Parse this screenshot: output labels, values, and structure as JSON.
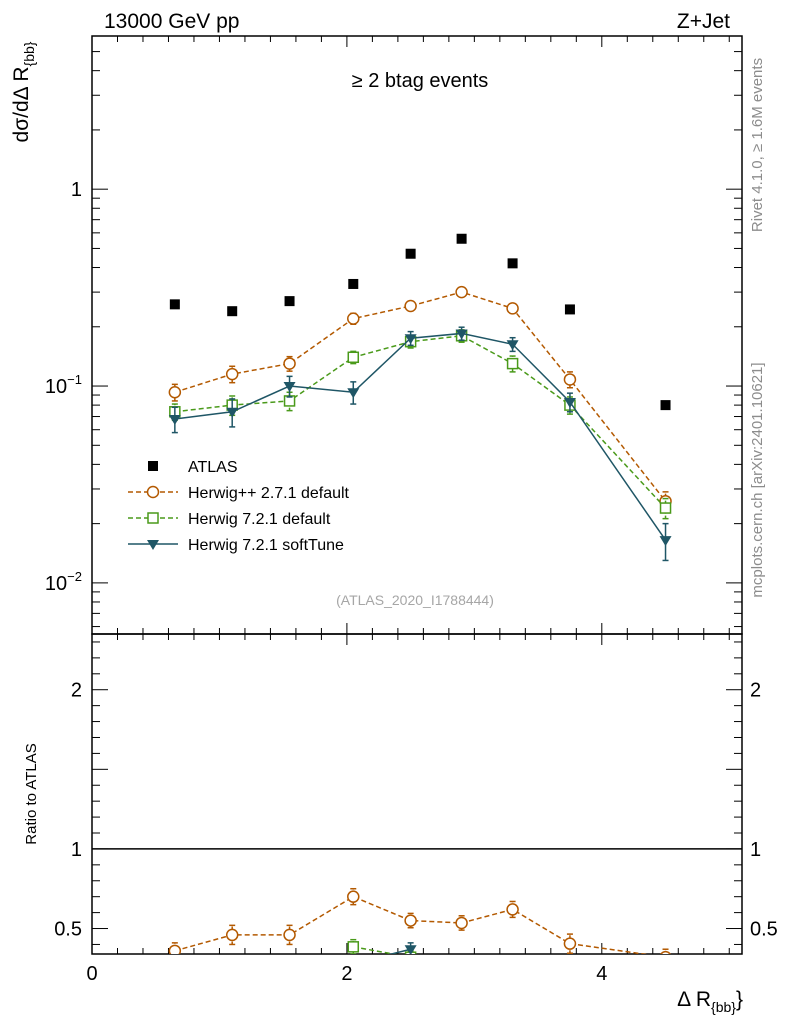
{
  "header": {
    "left": "13000 GeV pp",
    "right": "Z+Jet"
  },
  "side_labels": {
    "rivet": "Rivet 4.1.0, ≥ 1.6M events",
    "mcplots": "mcplots.cern.ch [arXiv:2401.10621]"
  },
  "chart_data": [
    {
      "type": "scatter",
      "panel": "main",
      "title": "≥ 2 btag events",
      "ylabel": "dσ/dΔ R{bb}",
      "yscale": "log",
      "ylim": [
        0.0055,
        6
      ],
      "xlim": [
        0,
        5.1
      ],
      "watermark": "(ATLAS_2020_I1788444)",
      "y_ticks": [
        {
          "value": 0.01,
          "label": "10",
          "exp": "−2"
        },
        {
          "value": 0.1,
          "label": "10",
          "exp": "−1"
        },
        {
          "value": 1,
          "label": "1",
          "exp": ""
        }
      ],
      "legend_position": "lower-left",
      "series": [
        {
          "name": "ATLAS",
          "color": "#000000",
          "marker": "square-filled",
          "line": "none",
          "x": [
            0.65,
            1.1,
            1.55,
            2.05,
            2.5,
            2.9,
            3.3,
            3.75,
            4.5
          ],
          "y": [
            0.26,
            0.24,
            0.27,
            0.33,
            0.47,
            0.56,
            0.42,
            0.245,
            0.08
          ],
          "err": [
            0,
            0,
            0,
            0,
            0,
            0,
            0,
            0,
            0
          ]
        },
        {
          "name": "Herwig++ 2.7.1 default",
          "color": "#b35900",
          "marker": "circle-open",
          "line": "dashed",
          "x": [
            0.65,
            1.1,
            1.55,
            2.05,
            2.5,
            2.9,
            3.3,
            3.75,
            4.5
          ],
          "y": [
            0.093,
            0.115,
            0.13,
            0.22,
            0.255,
            0.3,
            0.248,
            0.108,
            0.026
          ],
          "err": [
            0.009,
            0.011,
            0.011,
            0.014,
            0.014,
            0.015,
            0.014,
            0.01,
            0.003
          ]
        },
        {
          "name": "Herwig 7.2.1 default",
          "color": "#4a9a1a",
          "marker": "square-open",
          "line": "dashed",
          "x": [
            0.65,
            1.1,
            1.55,
            2.05,
            2.5,
            2.9,
            3.3,
            3.75,
            4.5
          ],
          "y": [
            0.074,
            0.08,
            0.084,
            0.14,
            0.168,
            0.18,
            0.13,
            0.08,
            0.024
          ],
          "err": [
            0.007,
            0.009,
            0.009,
            0.01,
            0.012,
            0.013,
            0.012,
            0.008,
            0.0028
          ]
        },
        {
          "name": "Herwig 7.2.1 softTune",
          "color": "#1f5666",
          "marker": "triangle-down-filled",
          "line": "solid",
          "x": [
            0.65,
            1.1,
            1.55,
            2.05,
            2.5,
            2.9,
            3.3,
            3.75,
            4.5
          ],
          "y": [
            0.068,
            0.074,
            0.1,
            0.093,
            0.175,
            0.185,
            0.163,
            0.083,
            0.0165
          ],
          "err": [
            0.01,
            0.012,
            0.012,
            0.012,
            0.014,
            0.014,
            0.013,
            0.009,
            0.0035
          ]
        }
      ]
    },
    {
      "type": "line",
      "panel": "ratio",
      "ylabel": "Ratio to ATLAS",
      "xlabel": "Δ R{bb}",
      "ylim": [
        0.34,
        2.35
      ],
      "xlim": [
        0,
        5.1
      ],
      "reference": 1,
      "y_ticks": [
        {
          "value": 0.5,
          "label": "0.5"
        },
        {
          "value": 1,
          "label": "1"
        },
        {
          "value": 2,
          "label": "2"
        }
      ],
      "x_ticks": [
        {
          "value": 0,
          "label": "0"
        },
        {
          "value": 2,
          "label": "2"
        },
        {
          "value": 4,
          "label": "4"
        }
      ],
      "series": [
        {
          "name": "Herwig++ 2.7.1 default",
          "color": "#b35900",
          "marker": "circle-open",
          "line": "dashed",
          "x": [
            0.65,
            1.1,
            1.55,
            2.05,
            2.5,
            2.9,
            3.3,
            3.75,
            4.5
          ],
          "y": [
            0.36,
            0.46,
            0.46,
            0.7,
            0.55,
            0.535,
            0.62,
            0.405,
            0.32
          ],
          "err": [
            0.05,
            0.06,
            0.06,
            0.05,
            0.045,
            0.045,
            0.05,
            0.06,
            0.05
          ]
        },
        {
          "name": "Herwig 7.2.1 default",
          "color": "#4a9a1a",
          "marker": "square-open",
          "line": "dashed",
          "x": [
            2.05,
            2.5
          ],
          "y": [
            0.385,
            0.32
          ],
          "err": [
            0.045,
            0.04
          ]
        },
        {
          "name": "Herwig 7.2.1 softTune",
          "color": "#1f5666",
          "marker": "triangle-down-filled",
          "line": "solid",
          "x": [
            2.05,
            2.5
          ],
          "y": [
            0.28,
            0.37
          ],
          "err": [
            0.04,
            0.04
          ]
        }
      ]
    }
  ]
}
